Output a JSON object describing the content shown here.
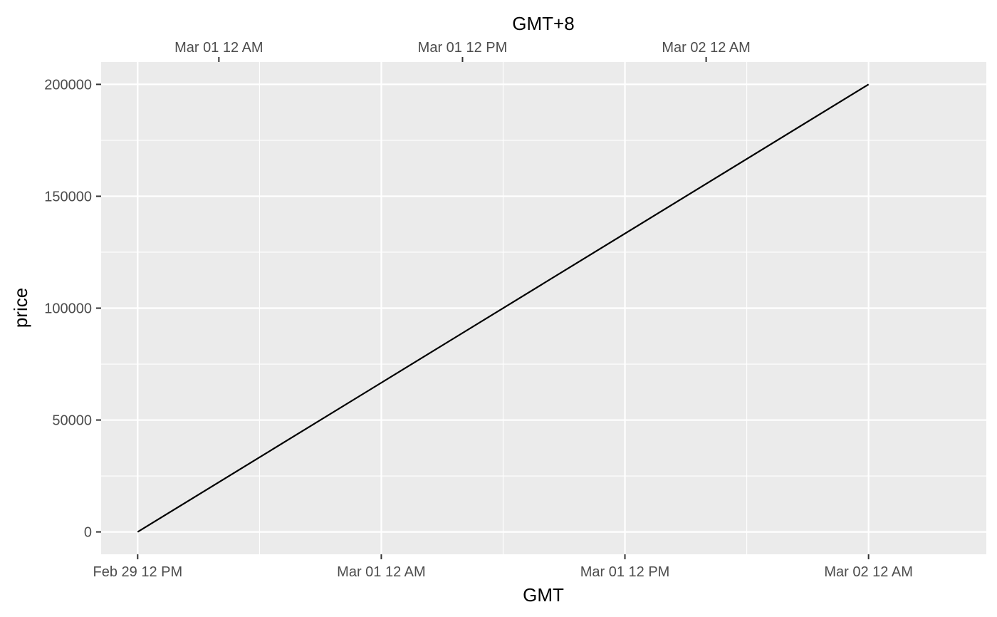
{
  "chart_data": {
    "type": "line",
    "xlabel": "GMT",
    "x2label": "GMT+8",
    "ylabel": "price",
    "x_ticks": [
      {
        "t": "2020-02-29T12:00:00Z",
        "label": "Feb 29 12 PM"
      },
      {
        "t": "2020-03-01T00:00:00Z",
        "label": "Mar 01 12 AM"
      },
      {
        "t": "2020-03-01T12:00:00Z",
        "label": "Mar 01 12 PM"
      },
      {
        "t": "2020-03-02T00:00:00Z",
        "label": "Mar 02 12 AM"
      }
    ],
    "x2_ticks": [
      {
        "t": "2020-02-29T16:00:00Z",
        "label": "Mar 01 12 AM"
      },
      {
        "t": "2020-03-01T04:00:00Z",
        "label": "Mar 01 12 PM"
      },
      {
        "t": "2020-03-01T16:00:00Z",
        "label": "Mar 02 12 AM"
      }
    ],
    "y_ticks": [
      0,
      50000,
      100000,
      150000,
      200000
    ],
    "xlim": [
      "2020-02-29T10:12:00Z",
      "2020-03-02T05:48:00Z"
    ],
    "ylim": [
      -10000,
      210000
    ],
    "series": [
      {
        "x": [
          "2020-02-29T12:00:00Z",
          "2020-03-02T00:00:00Z"
        ],
        "y": [
          0,
          200000
        ]
      }
    ],
    "grid": true,
    "colors": {
      "panel": "#ebebeb",
      "grid": "#ffffff",
      "line": "#000000",
      "tick_text": "#4d4d4d",
      "tick_mark": "#333333"
    }
  }
}
